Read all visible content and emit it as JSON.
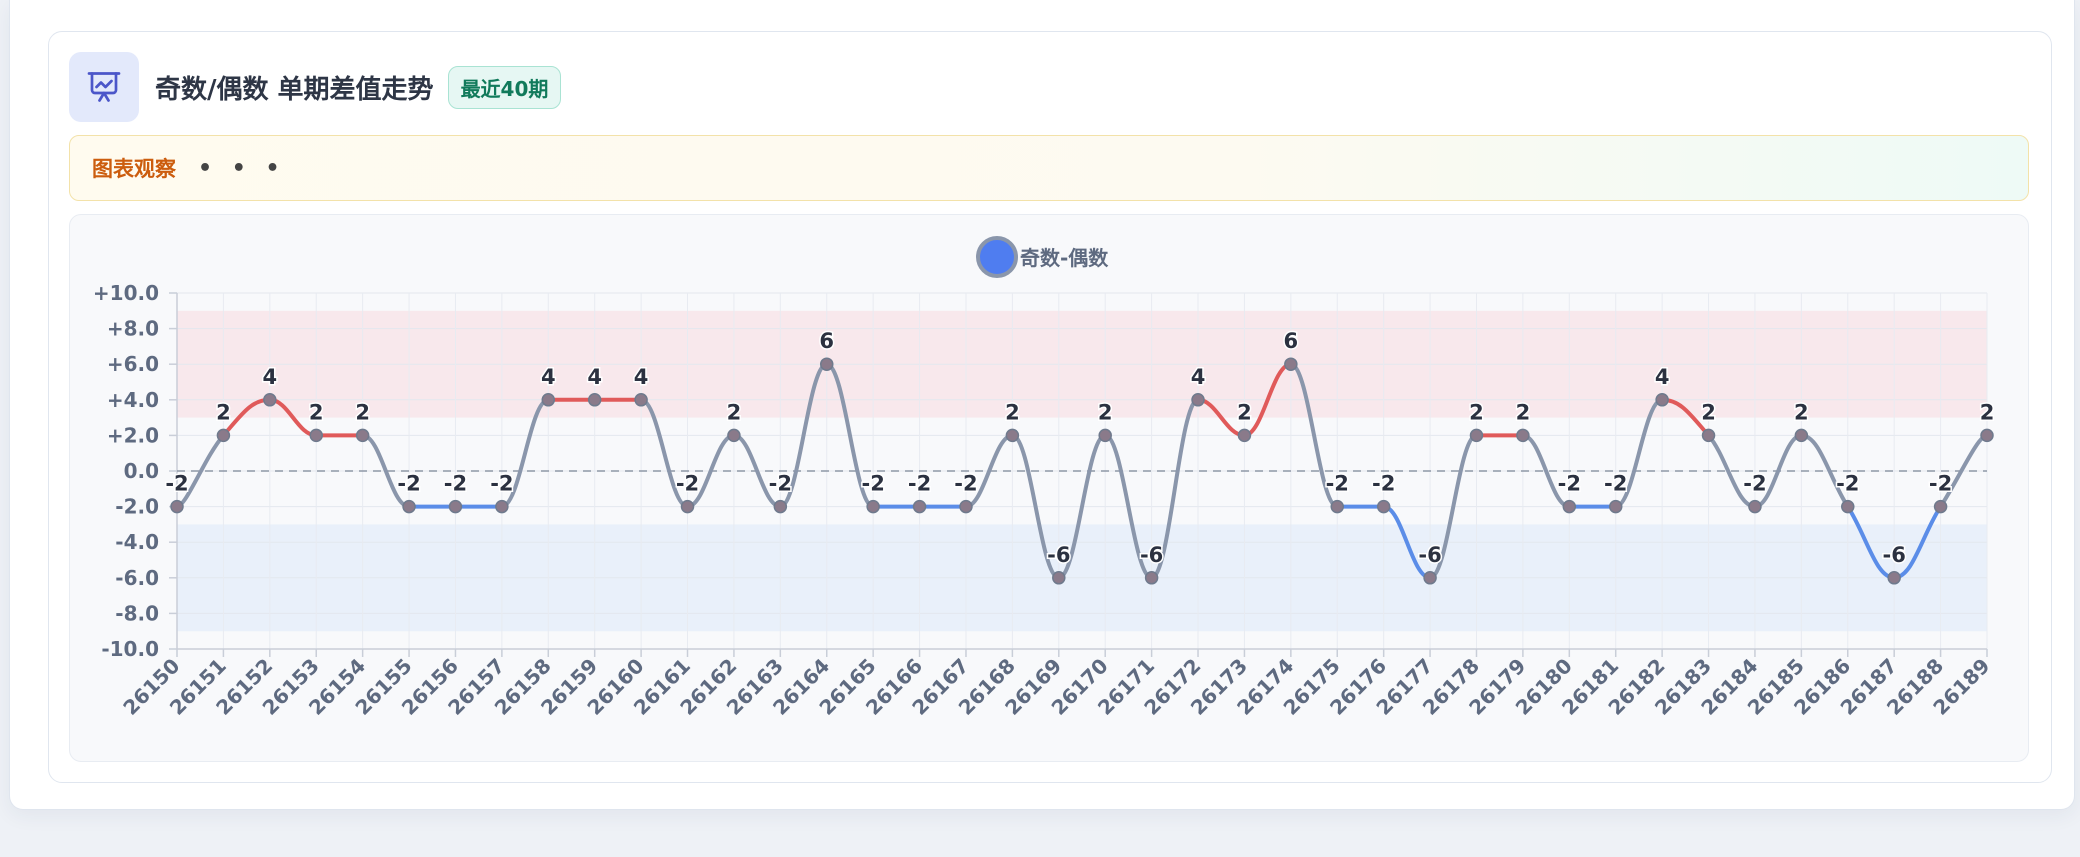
{
  "header": {
    "icon": "presentation-chart-icon",
    "title": "奇数/偶数 单期差值走势",
    "badge": "最近40期"
  },
  "observation": {
    "label": "图表观察",
    "dots": "• • •"
  },
  "colors": {
    "positive_line": "#e05a5a",
    "negative_line": "#5b8de8",
    "neutral_line": "#8a96ab",
    "positive_band": "#f7e6ea",
    "negative_band": "#e7eefa",
    "legend_fill": "#4f7df0",
    "point_fill": "#8a7a8a",
    "axis_text": "#5e6a80"
  },
  "chart_data": {
    "type": "line",
    "legend": {
      "name": "奇数-偶数",
      "position": "top-center"
    },
    "categories": [
      "26150",
      "26151",
      "26152",
      "26153",
      "26154",
      "26155",
      "26156",
      "26157",
      "26158",
      "26159",
      "26160",
      "26161",
      "26162",
      "26163",
      "26164",
      "26165",
      "26166",
      "26167",
      "26168",
      "26169",
      "26170",
      "26171",
      "26172",
      "26173",
      "26174",
      "26175",
      "26176",
      "26177",
      "26178",
      "26179",
      "26180",
      "26181",
      "26182",
      "26183",
      "26184",
      "26185",
      "26186",
      "26187",
      "26188",
      "26189"
    ],
    "series": [
      {
        "name": "奇数-偶数",
        "values": [
          -2,
          2,
          4,
          2,
          2,
          -2,
          -2,
          -2,
          4,
          4,
          4,
          -2,
          2,
          -2,
          6,
          -2,
          -2,
          -2,
          2,
          -6,
          2,
          -6,
          4,
          2,
          6,
          -2,
          -2,
          -6,
          2,
          2,
          -2,
          -2,
          4,
          2,
          -2,
          2,
          -2,
          -6,
          -2,
          2
        ]
      }
    ],
    "ylim": [
      -10,
      10
    ],
    "yticks": [
      "+10.0",
      "+8.0",
      "+6.0",
      "+4.0",
      "+2.0",
      "0.0",
      "-2.0",
      "-4.0",
      "-6.0",
      "-8.0",
      "-10.0"
    ],
    "bands": [
      {
        "from": 3,
        "to": 9,
        "kind": "positive"
      },
      {
        "from": -9,
        "to": -3,
        "kind": "negative"
      }
    ],
    "zero_line": "dashed",
    "grid": true,
    "data_labels": true
  }
}
